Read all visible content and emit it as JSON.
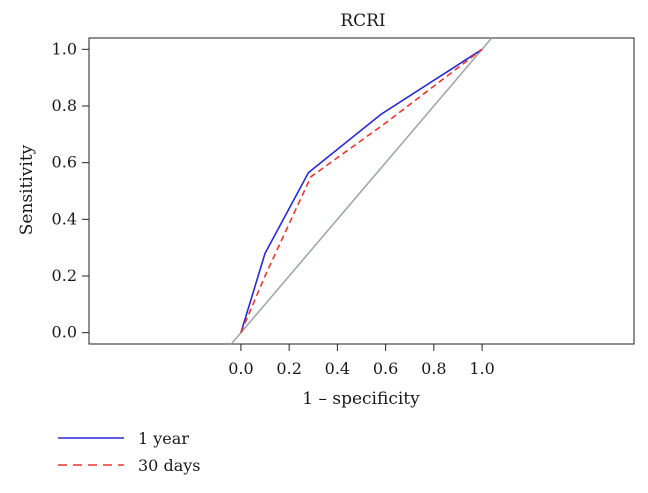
{
  "chart_data": {
    "type": "line",
    "title": "RCRI",
    "xlabel": "1 – specificity",
    "ylabel": "Sensitivity",
    "xlim": [
      -0.63,
      1.63
    ],
    "ylim": [
      -0.04,
      1.04
    ],
    "xticks": [
      0.0,
      0.2,
      0.4,
      0.6,
      0.8,
      1.0
    ],
    "xtick_labels": [
      "0.0",
      "0.2",
      "0.4",
      "0.6",
      "0.8",
      "1.0"
    ],
    "yticks": [
      0.0,
      0.2,
      0.4,
      0.6,
      0.8,
      1.0
    ],
    "ytick_labels": [
      "0.0",
      "0.2",
      "0.4",
      "0.6",
      "0.8",
      "1.0"
    ],
    "grid": false,
    "legend": "bottom-left, outside plot",
    "series": [
      {
        "name": "1 year",
        "style": "solid",
        "color": "#2a2ad4",
        "x": [
          0.0,
          0.1,
          0.28,
          0.58,
          1.0
        ],
        "y": [
          0.0,
          0.28,
          0.565,
          0.77,
          1.0
        ]
      },
      {
        "name": "30 days",
        "style": "dashed",
        "color": "#e8352e",
        "x": [
          0.0,
          0.1,
          0.29,
          0.6,
          1.0
        ],
        "y": [
          0.0,
          0.2,
          0.55,
          0.74,
          1.0
        ]
      }
    ],
    "reference_line": {
      "color": "#a0a8a8",
      "x": [
        -0.04,
        1.04
      ],
      "y": [
        -0.04,
        1.04
      ]
    }
  }
}
